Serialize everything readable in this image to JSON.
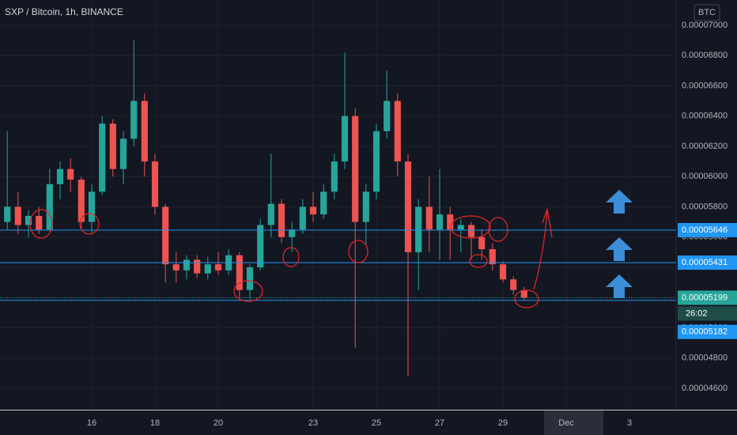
{
  "chart_data": {
    "type": "candlestick",
    "title": "SXP / Bitcoin, 1h, BINANCE",
    "currency": "BTC",
    "countdown": "26:02",
    "up_color": "#26a69a",
    "down_color": "#ef5350",
    "grid": true,
    "x": [
      13.33,
      13.67,
      14,
      14.33,
      14.67,
      15,
      15.33,
      15.67,
      16,
      16.33,
      16.67,
      17,
      17.33,
      17.67,
      18,
      18.33,
      18.67,
      19,
      19.33,
      19.67,
      20,
      20.33,
      20.67,
      21,
      21.33,
      21.67,
      22,
      22.33,
      22.67,
      23,
      23.33,
      23.67,
      24,
      24.33,
      24.67,
      25,
      25.33,
      25.67,
      26,
      26.33,
      26.67,
      27,
      27.33,
      27.67,
      28,
      28.33,
      28.67,
      29,
      29.33,
      29.67
    ],
    "open": [
      5.7e-05,
      5.8e-05,
      5.68e-05,
      5.74e-05,
      5.65e-05,
      5.95e-05,
      6.05e-05,
      5.98e-05,
      5.7e-05,
      5.9e-05,
      6.35e-05,
      6.05e-05,
      6.25e-05,
      6.5e-05,
      6.1e-05,
      5.8e-05,
      5.42e-05,
      5.38e-05,
      5.45e-05,
      5.36e-05,
      5.42e-05,
      5.38e-05,
      5.48e-05,
      5.25e-05,
      5.4e-05,
      5.68e-05,
      5.82e-05,
      5.6e-05,
      5.65e-05,
      5.8e-05,
      5.75e-05,
      5.9e-05,
      6.1e-05,
      6.4e-05,
      5.7e-05,
      5.9e-05,
      6.3e-05,
      6.5e-05,
      6.1e-05,
      5.5e-05,
      5.8e-05,
      5.65e-05,
      5.75e-05,
      5.65e-05,
      5.68e-05,
      5.6e-05,
      5.52e-05,
      5.42e-05,
      5.32e-05,
      5.25e-05
    ],
    "high": [
      6.3e-05,
      5.9e-05,
      5.78e-05,
      5.8e-05,
      6.05e-05,
      6.1e-05,
      6.12e-05,
      6e-05,
      5.95e-05,
      6.4e-05,
      6.38e-05,
      6.3e-05,
      6.9e-05,
      6.55e-05,
      6.15e-05,
      5.82e-05,
      5.5e-05,
      5.48e-05,
      5.48e-05,
      5.47e-05,
      5.5e-05,
      5.52e-05,
      5.5e-05,
      5.42e-05,
      5.72e-05,
      6.15e-05,
      5.85e-05,
      5.7e-05,
      5.85e-05,
      5.9e-05,
      5.95e-05,
      6.15e-05,
      6.82e-05,
      6.45e-05,
      5.95e-05,
      6.35e-05,
      6.7e-05,
      6.55e-05,
      6.15e-05,
      5.85e-05,
      6e-05,
      6.05e-05,
      5.8e-05,
      5.72e-05,
      5.7e-05,
      5.65e-05,
      5.56e-05,
      5.44e-05,
      5.34e-05,
      5.27e-05
    ],
    "low": [
      5.65e-05,
      5.62e-05,
      5.6e-05,
      5.62e-05,
      5.64e-05,
      5.85e-05,
      5.9e-05,
      5.65e-05,
      5.62e-05,
      5.88e-05,
      6e-05,
      5.95e-05,
      6.2e-05,
      6e-05,
      5.75e-05,
      5.3e-05,
      5.3e-05,
      5.32e-05,
      5.33e-05,
      5.32e-05,
      5.35e-05,
      5.35e-05,
      5.2e-05,
      5.19e-05,
      5.38e-05,
      5.6e-05,
      5.56e-05,
      5.5e-05,
      5.62e-05,
      5.7e-05,
      5.72e-05,
      5.85e-05,
      6.05e-05,
      4.87e-05,
      5.55e-05,
      5.85e-05,
      6.25e-05,
      6e-05,
      4.68e-05,
      5.25e-05,
      5.5e-05,
      5.45e-05,
      5.45e-05,
      5.5e-05,
      5.45e-05,
      5.45e-05,
      5.38e-05,
      5.3e-05,
      5.22e-05,
      5.18e-05
    ],
    "close": [
      5.8e-05,
      5.68e-05,
      5.74e-05,
      5.65e-05,
      5.95e-05,
      6.05e-05,
      5.98e-05,
      5.7e-05,
      5.9e-05,
      6.35e-05,
      6.05e-05,
      6.25e-05,
      6.5e-05,
      6.1e-05,
      5.8e-05,
      5.42e-05,
      5.38e-05,
      5.45e-05,
      5.36e-05,
      5.42e-05,
      5.38e-05,
      5.48e-05,
      5.25e-05,
      5.4e-05,
      5.68e-05,
      5.82e-05,
      5.6e-05,
      5.65e-05,
      5.8e-05,
      5.75e-05,
      5.9e-05,
      6.1e-05,
      6.4e-05,
      5.7e-05,
      5.9e-05,
      6.3e-05,
      6.5e-05,
      6.1e-05,
      5.5e-05,
      5.8e-05,
      5.65e-05,
      5.75e-05,
      5.65e-05,
      5.68e-05,
      5.6e-05,
      5.52e-05,
      5.42e-05,
      5.32e-05,
      5.25e-05,
      5.199e-05
    ],
    "xlim": [
      13.1,
      34.475
    ],
    "ylim": [
      4.45882e-05,
      7.16733e-05
    ],
    "xticks": [
      16,
      18,
      20,
      23,
      25,
      27,
      29,
      {
        "value": 31,
        "label": "Dec"
      },
      {
        "value": 33,
        "label": "3"
      }
    ],
    "yticks": [
      {
        "value": 4.6e-05,
        "label": "0.00004600"
      },
      {
        "value": 4.8e-05,
        "label": "0.00004800"
      },
      {
        "value": 5e-05,
        "label": "0.00005000"
      },
      {
        "value": 5.2e-05,
        "label": "0.00005200"
      },
      {
        "value": 5.4e-05,
        "label": "0.00005400"
      },
      {
        "value": 5.6e-05,
        "label": "0.00005600"
      },
      {
        "value": 5.8e-05,
        "label": "0.00005800"
      },
      {
        "value": 6e-05,
        "label": "0.00006000"
      },
      {
        "value": 6.2e-05,
        "label": "0.00006200"
      },
      {
        "value": 6.4e-05,
        "label": "0.00006400"
      },
      {
        "value": 6.6e-05,
        "label": "0.00006600"
      },
      {
        "value": 6.8e-05,
        "label": "0.00006800"
      },
      {
        "value": 7e-05,
        "label": "0.00007000"
      }
    ],
    "price_lines": [
      {
        "value": 5.646e-05,
        "color": "#2196f3",
        "style": "solid"
      },
      {
        "value": 5.431e-05,
        "color": "#2196f3",
        "style": "solid"
      },
      {
        "value": 5.199e-05,
        "color": "#26a69a",
        "style": "dotted"
      },
      {
        "value": 5.182e-05,
        "color": "#2196f3",
        "style": "solid"
      }
    ]
  }
}
